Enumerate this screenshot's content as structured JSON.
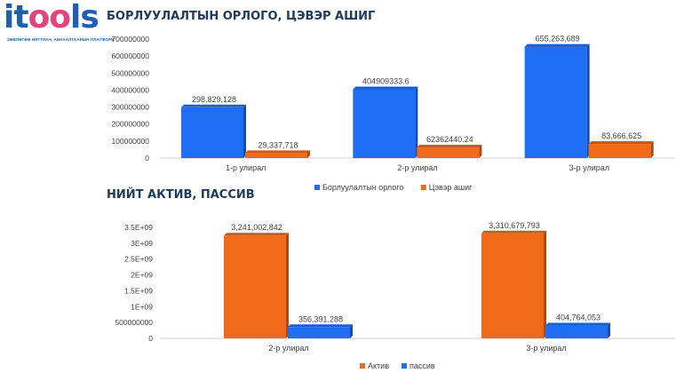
{
  "logo": {
    "word_part1": "it",
    "word_part2": "oo",
    "word_part3": "ls",
    "tagline": "ЗӨВЛӨГӨӨ НЯГТЛАН, АНХААЛТААРЫН ПЛАТФОРМ"
  },
  "colors": {
    "blue": "#1f6ef5",
    "orange": "#f06a1a",
    "title": "#1f3a5a"
  },
  "chart_data": [
    {
      "type": "bar",
      "title": "БОРЛУУЛАЛТЫН ОРЛОГО, ЦЭВЭР АШИГ",
      "categories": [
        "1-р улирал",
        "2-р улирал",
        "3-р улирал"
      ],
      "ylim": [
        0,
        700000000
      ],
      "yticks": [
        "0",
        "100000000",
        "200000000",
        "300000000",
        "400000000",
        "500000000",
        "600000000",
        "700000000"
      ],
      "ytick_values": [
        0,
        100000000,
        200000000,
        300000000,
        400000000,
        500000000,
        600000000,
        700000000
      ],
      "legend_position": "bottom",
      "grid": false,
      "series": [
        {
          "name": "Борлуулалтын орлого",
          "color": "#1f6ef5",
          "values": [
            298829128,
            404909333.6,
            655263689
          ],
          "labels": [
            "298,829,128",
            "404909333.6",
            "655,263,689"
          ]
        },
        {
          "name": "Цэвэр ашиг",
          "color": "#f06a1a",
          "values": [
            29337718,
            62362440.24,
            83666625
          ],
          "labels": [
            "29,337,718",
            "62362440.24",
            "83,666,625"
          ]
        }
      ]
    },
    {
      "type": "bar",
      "title": "НИЙТ АКТИВ, ПАССИВ",
      "categories": [
        "2-р улирал",
        "3-р улирал"
      ],
      "ylim": [
        0,
        3500000000
      ],
      "yticks": [
        "0",
        "500000000",
        "1E+09",
        "1.5E+09",
        "2E+09",
        "2.5E+09",
        "3E+09",
        "3.5E+09"
      ],
      "ytick_values": [
        0,
        500000000,
        1000000000,
        1500000000,
        2000000000,
        2500000000,
        3000000000,
        3500000000
      ],
      "legend_position": "bottom",
      "grid": false,
      "series": [
        {
          "name": "Актив",
          "color": "#f06a1a",
          "values": [
            3241002842,
            3310679793
          ],
          "labels": [
            "3,241,002,842",
            "3,310,679,793"
          ]
        },
        {
          "name": "пассив",
          "color": "#1f6ef5",
          "values": [
            356391288,
            404764053
          ],
          "labels": [
            "356,391,288",
            "404,764,053"
          ]
        }
      ]
    }
  ]
}
